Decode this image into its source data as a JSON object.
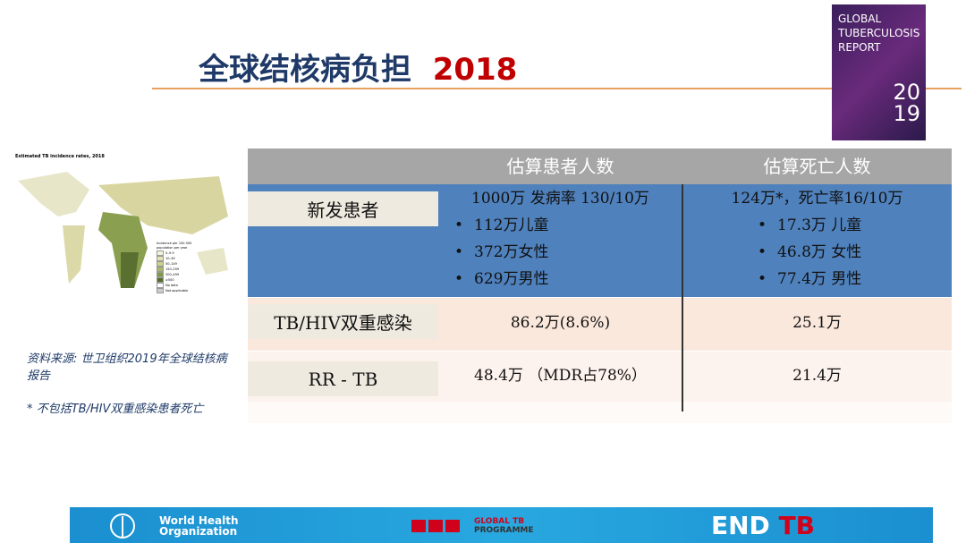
{
  "header": {
    "title": "全球结核病负担",
    "year": "2018"
  },
  "cover": {
    "lines": [
      "GLOBAL",
      "TUBERCULOSIS",
      "REPORT"
    ],
    "year_top": "20",
    "year_bottom": "19"
  },
  "map": {
    "title": "Estimated TB incidence rates, 2018",
    "legend_title": "Incidence per 100 000 population per year",
    "legend": [
      "0–9.9",
      "10–49",
      "50–149",
      "150–299",
      "300–499",
      "≥500",
      "No data",
      "Not applicable"
    ]
  },
  "table": {
    "columns": [
      "估算患者人数",
      "估算死亡人数"
    ],
    "rows": [
      {
        "label": "新发患者",
        "cells": [
          [
            "1000万  发病率  130/10万",
            "112万儿童",
            "372万女性",
            "629万男性"
          ],
          [
            "124万*，死亡率16/10万",
            "17.3万 儿童",
            "46.8万 女性",
            "77.4万 男性"
          ]
        ]
      },
      {
        "label": "TB/HIV双重感染",
        "cells": [
          [
            "86.2万(8.6%)"
          ],
          [
            "25.1万"
          ]
        ]
      },
      {
        "label": "RR - TB",
        "cells": [
          [
            "48.4万  （MDR占78%）"
          ],
          [
            "21.4万"
          ]
        ]
      }
    ]
  },
  "notes": [
    "资料来源: 世卫组织2019年全球结核病报告",
    "* 不包括TB/HIV双重感染患者死亡"
  ],
  "footer": {
    "who": "World Health Organization",
    "gtb_top": "GLOBAL TB",
    "gtb_bottom": "PROGRAMME",
    "end": "END",
    "tb": "TB"
  }
}
